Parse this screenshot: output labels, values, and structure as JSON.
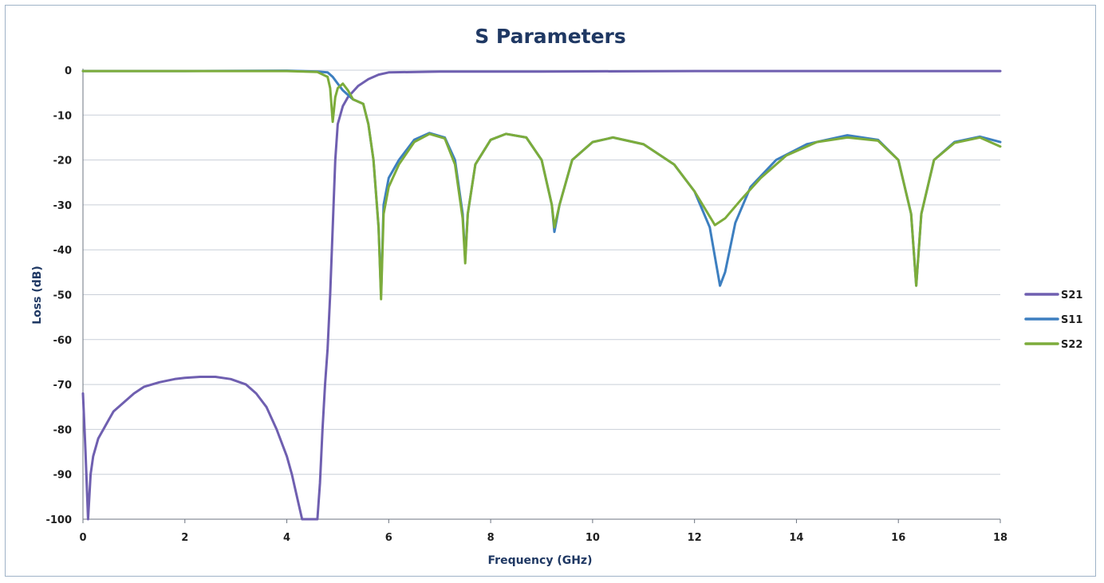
{
  "chart_data": {
    "type": "line",
    "title": "S Parameters",
    "xlabel": "Frequency (GHz)",
    "ylabel": "Loss (dB)",
    "xlim": [
      0,
      18
    ],
    "ylim": [
      -100,
      0
    ],
    "x_ticks": [
      "0",
      "2",
      "4",
      "6",
      "8",
      "10",
      "12",
      "14",
      "16",
      "18"
    ],
    "y_ticks": [
      "0",
      "-10",
      "-20",
      "-30",
      "-40",
      "-50",
      "-60",
      "-70",
      "-80",
      "-90",
      "-100"
    ],
    "grid": "horizontal",
    "legend_position": "right",
    "series": [
      {
        "name": "S21",
        "color": "#6f5fb0",
        "points": [
          [
            0.0,
            -72
          ],
          [
            0.05,
            -85
          ],
          [
            0.1,
            -100
          ],
          [
            0.15,
            -90
          ],
          [
            0.2,
            -86
          ],
          [
            0.3,
            -82
          ],
          [
            0.4,
            -80
          ],
          [
            0.5,
            -78
          ],
          [
            0.6,
            -76
          ],
          [
            0.8,
            -74
          ],
          [
            1.0,
            -72
          ],
          [
            1.2,
            -70.5
          ],
          [
            1.5,
            -69.5
          ],
          [
            1.8,
            -68.8
          ],
          [
            2.0,
            -68.5
          ],
          [
            2.3,
            -68.3
          ],
          [
            2.6,
            -68.3
          ],
          [
            2.9,
            -68.8
          ],
          [
            3.2,
            -70
          ],
          [
            3.4,
            -72
          ],
          [
            3.6,
            -75
          ],
          [
            3.8,
            -80
          ],
          [
            4.0,
            -86
          ],
          [
            4.1,
            -90
          ],
          [
            4.2,
            -95
          ],
          [
            4.3,
            -100
          ],
          [
            4.6,
            -100
          ],
          [
            4.65,
            -92
          ],
          [
            4.7,
            -80
          ],
          [
            4.75,
            -70
          ],
          [
            4.8,
            -62
          ],
          [
            4.85,
            -50
          ],
          [
            4.9,
            -35
          ],
          [
            4.95,
            -20
          ],
          [
            5.0,
            -12
          ],
          [
            5.1,
            -8
          ],
          [
            5.2,
            -6
          ],
          [
            5.4,
            -3.5
          ],
          [
            5.6,
            -2
          ],
          [
            5.8,
            -1
          ],
          [
            6.0,
            -0.5
          ],
          [
            7.0,
            -0.3
          ],
          [
            9.0,
            -0.3
          ],
          [
            12.0,
            -0.2
          ],
          [
            15.0,
            -0.2
          ],
          [
            18.0,
            -0.2
          ]
        ]
      },
      {
        "name": "S11",
        "color": "#3d7fc0",
        "points": [
          [
            0.0,
            -0.2
          ],
          [
            2.0,
            -0.2
          ],
          [
            4.0,
            -0.1
          ],
          [
            4.6,
            -0.3
          ],
          [
            4.8,
            -0.5
          ],
          [
            4.9,
            -1.5
          ],
          [
            5.0,
            -3
          ],
          [
            5.1,
            -4.5
          ],
          [
            5.2,
            -5.5
          ],
          [
            5.3,
            -6.5
          ],
          [
            5.5,
            -7.5
          ],
          [
            5.6,
            -12
          ],
          [
            5.7,
            -20
          ],
          [
            5.8,
            -35
          ],
          [
            5.85,
            -50
          ],
          [
            5.9,
            -30
          ],
          [
            6.0,
            -24
          ],
          [
            6.2,
            -20
          ],
          [
            6.5,
            -15.5
          ],
          [
            6.8,
            -14
          ],
          [
            7.1,
            -15
          ],
          [
            7.3,
            -20
          ],
          [
            7.45,
            -32
          ],
          [
            7.5,
            -42
          ],
          [
            7.55,
            -32
          ],
          [
            7.7,
            -21
          ],
          [
            8.0,
            -15.5
          ],
          [
            8.3,
            -14.2
          ],
          [
            8.7,
            -15
          ],
          [
            9.0,
            -20
          ],
          [
            9.2,
            -30
          ],
          [
            9.25,
            -36
          ],
          [
            9.35,
            -30
          ],
          [
            9.6,
            -20
          ],
          [
            10.0,
            -16
          ],
          [
            10.4,
            -15
          ],
          [
            11.0,
            -16.5
          ],
          [
            11.6,
            -21
          ],
          [
            12.0,
            -27
          ],
          [
            12.3,
            -35
          ],
          [
            12.5,
            -48
          ],
          [
            12.6,
            -45
          ],
          [
            12.8,
            -34
          ],
          [
            13.1,
            -26
          ],
          [
            13.6,
            -20
          ],
          [
            14.2,
            -16.5
          ],
          [
            15.0,
            -14.5
          ],
          [
            15.6,
            -15.5
          ],
          [
            16.0,
            -20
          ],
          [
            16.25,
            -32
          ],
          [
            16.35,
            -48
          ],
          [
            16.45,
            -32
          ],
          [
            16.7,
            -20
          ],
          [
            17.1,
            -16
          ],
          [
            17.6,
            -14.8
          ],
          [
            18.0,
            -16
          ]
        ]
      },
      {
        "name": "S22",
        "color": "#7cac3b",
        "points": [
          [
            0.0,
            -0.2
          ],
          [
            2.0,
            -0.2
          ],
          [
            4.0,
            -0.2
          ],
          [
            4.6,
            -0.4
          ],
          [
            4.8,
            -1.5
          ],
          [
            4.85,
            -4
          ],
          [
            4.9,
            -11.5
          ],
          [
            4.95,
            -6
          ],
          [
            5.0,
            -4
          ],
          [
            5.1,
            -3
          ],
          [
            5.2,
            -4.5
          ],
          [
            5.3,
            -6.5
          ],
          [
            5.5,
            -7.5
          ],
          [
            5.6,
            -12
          ],
          [
            5.7,
            -20
          ],
          [
            5.8,
            -35
          ],
          [
            5.85,
            -51
          ],
          [
            5.9,
            -32
          ],
          [
            6.0,
            -26
          ],
          [
            6.2,
            -21
          ],
          [
            6.5,
            -16
          ],
          [
            6.8,
            -14.2
          ],
          [
            7.1,
            -15.2
          ],
          [
            7.3,
            -21
          ],
          [
            7.45,
            -33
          ],
          [
            7.5,
            -43
          ],
          [
            7.55,
            -32
          ],
          [
            7.7,
            -21
          ],
          [
            8.0,
            -15.5
          ],
          [
            8.3,
            -14.2
          ],
          [
            8.7,
            -15
          ],
          [
            9.0,
            -20
          ],
          [
            9.2,
            -30
          ],
          [
            9.25,
            -35
          ],
          [
            9.35,
            -30
          ],
          [
            9.6,
            -20
          ],
          [
            10.0,
            -16
          ],
          [
            10.4,
            -15
          ],
          [
            11.0,
            -16.5
          ],
          [
            11.6,
            -21
          ],
          [
            12.0,
            -27
          ],
          [
            12.4,
            -34.5
          ],
          [
            12.6,
            -33
          ],
          [
            12.9,
            -29
          ],
          [
            13.3,
            -24
          ],
          [
            13.8,
            -19
          ],
          [
            14.4,
            -16
          ],
          [
            15.0,
            -15
          ],
          [
            15.6,
            -15.7
          ],
          [
            16.0,
            -20
          ],
          [
            16.25,
            -32
          ],
          [
            16.35,
            -48
          ],
          [
            16.45,
            -32
          ],
          [
            16.7,
            -20
          ],
          [
            17.1,
            -16.2
          ],
          [
            17.6,
            -15
          ],
          [
            18.0,
            -17
          ]
        ]
      }
    ]
  }
}
